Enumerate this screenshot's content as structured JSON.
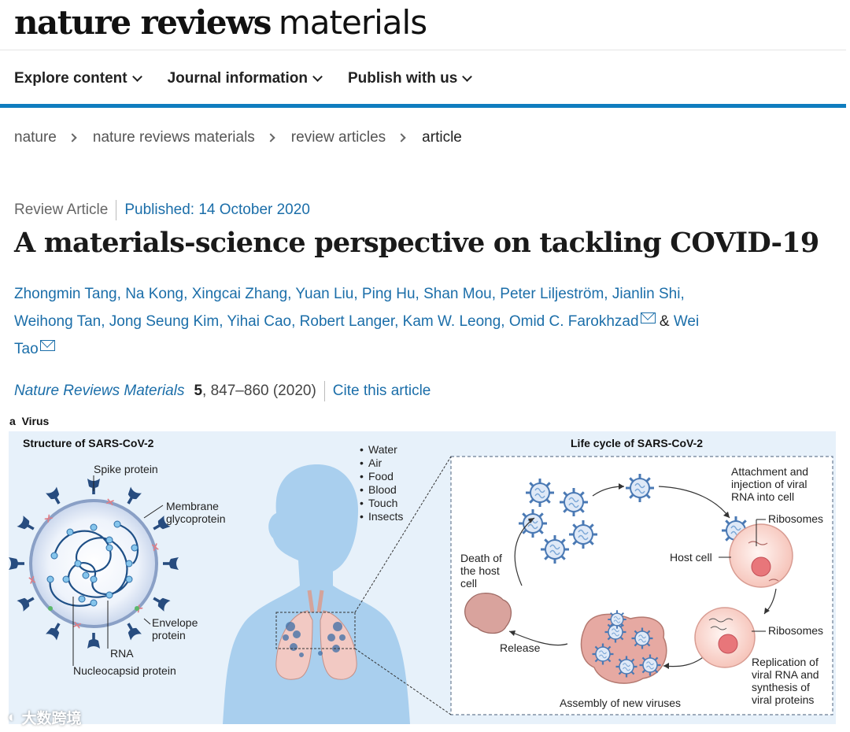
{
  "brand": {
    "bold": "nature reviews",
    "light": "materials"
  },
  "nav": [
    {
      "label": "Explore content"
    },
    {
      "label": "Journal information"
    },
    {
      "label": "Publish with us"
    }
  ],
  "breadcrumb": [
    "nature",
    "nature reviews materials",
    "review articles",
    "article"
  ],
  "article": {
    "type": "Review Article",
    "published": "Published: 14 October 2020",
    "title": "A materials-science perspective on tackling COVID-19",
    "authors": [
      "Zhongmin Tang",
      "Na Kong",
      "Xingcai Zhang",
      "Yuan Liu",
      "Ping Hu",
      "Shan Mou",
      "Peter Liljeström",
      "Jianlin Shi",
      "Weihong Tan",
      "Jong Seung Kim",
      "Yihai Cao",
      "Robert Langer",
      "Kam W. Leong",
      "Omid C. Farokhzad",
      "Wei Tao"
    ],
    "amp": "&",
    "citation": {
      "journal": "Nature Reviews Materials",
      "volume": "5",
      "pages": ", 847–860 (2020)",
      "cite_link": "Cite this article"
    }
  },
  "figure": {
    "panel_label": "a",
    "panel_title": "Virus",
    "structure_title": "Structure of SARS-CoV-2",
    "structure_labels": {
      "spike": "Spike protein",
      "membrane1": "Membrane",
      "membrane2": "glycoprotein",
      "envelope1": "Envelope",
      "envelope2": "protein",
      "rna": "RNA",
      "nucleocapsid": "Nucleocapsid protein"
    },
    "transmission": [
      "Water",
      "Air",
      "Food",
      "Blood",
      "Touch",
      "Insects"
    ],
    "lifecycle_title": "Life cycle of SARS-CoV-2",
    "lifecycle_labels": {
      "attach1": "Attachment and",
      "attach2": "injection of viral",
      "attach3": "RNA into cell",
      "ribosomes_top": "Ribosomes",
      "host_cell": "Host cell",
      "ribosomes_mid": "Ribosomes",
      "death1": "Death of",
      "death2": "the host",
      "death3": "cell",
      "release": "Release",
      "assembly": "Assembly of new viruses",
      "rep1": "Replication of",
      "rep2": "viral RNA and",
      "rep3": "synthesis of",
      "rep4": "viral proteins"
    }
  },
  "watermark": "大数跨境",
  "colors": {
    "accent_blue": "#0f7dbf",
    "link_blue": "#1b6ea9",
    "figure_bg": "#e7f1fa",
    "virus_navy": "#274c7f",
    "body_blue": "#a9cfee",
    "lung_pink": "#f2c9c3"
  }
}
